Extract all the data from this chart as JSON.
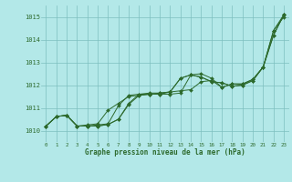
{
  "title": "Graphe pression niveau de la mer (hPa)",
  "xlabel": "Graphe pression niveau de la mer (hPa)",
  "ylim": [
    1009.5,
    1015.5
  ],
  "xlim": [
    -0.5,
    23.5
  ],
  "xticks": [
    0,
    1,
    2,
    3,
    4,
    5,
    6,
    7,
    8,
    9,
    10,
    11,
    12,
    13,
    14,
    15,
    16,
    17,
    18,
    19,
    20,
    21,
    22,
    23
  ],
  "yticks": [
    1010,
    1011,
    1012,
    1013,
    1014,
    1015
  ],
  "bg_color": "#b3e8e8",
  "grid_color": "#7dbfbf",
  "line_color": "#2d6a2d",
  "lines": [
    [
      1010.2,
      1010.62,
      1010.67,
      1010.2,
      1010.2,
      1010.2,
      1010.27,
      1010.5,
      1011.15,
      1011.55,
      1011.6,
      1011.6,
      1011.6,
      1011.65,
      1012.45,
      1012.5,
      1012.3,
      1011.9,
      1012.05,
      1012.05,
      1012.25,
      1012.8,
      1014.4,
      1015.0
    ],
    [
      1010.2,
      1010.62,
      1010.67,
      1010.2,
      1010.2,
      1010.2,
      1010.27,
      1010.5,
      1011.2,
      1011.6,
      1011.6,
      1011.6,
      1011.7,
      1012.3,
      1012.45,
      1012.35,
      1012.15,
      1012.1,
      1011.95,
      1012.0,
      1012.2,
      1012.8,
      1014.2,
      1015.1
    ],
    [
      1010.2,
      1010.62,
      1010.67,
      1010.2,
      1010.2,
      1010.25,
      1010.3,
      1011.1,
      1011.55,
      1011.6,
      1011.65,
      1011.65,
      1011.7,
      1011.75,
      1011.8,
      1012.15,
      1012.2,
      1011.9,
      1012.05,
      1012.05,
      1012.25,
      1012.8,
      1014.4,
      1015.1
    ],
    [
      1010.2,
      1010.62,
      1010.67,
      1010.2,
      1010.25,
      1010.3,
      1010.9,
      1011.2,
      1011.5,
      1011.55,
      1011.6,
      1011.65,
      1011.7,
      1012.3,
      1012.45,
      1012.35,
      1012.15,
      1012.1,
      1011.95,
      1012.0,
      1012.2,
      1012.8,
      1014.2,
      1015.1
    ]
  ]
}
